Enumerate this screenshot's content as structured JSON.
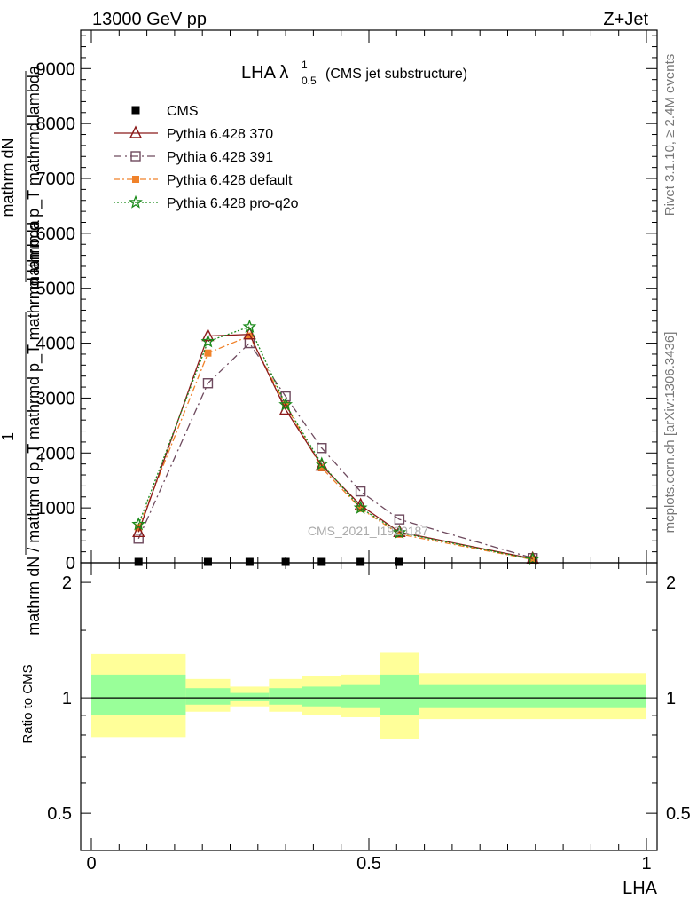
{
  "header": {
    "left": "13000 GeV pp",
    "right": "Z+Jet"
  },
  "side_text": {
    "rivet": "Rivet 3.1.10, ≥ 2.4M events",
    "mcplots": "mcplots.cern.ch [arXiv:1306.3436]"
  },
  "watermark": "CMS_2021_I1920187",
  "colors": {
    "cms": "#000000",
    "p370": "#8b1a1a",
    "p391": "#6e4a5e",
    "pdefault": "#f0822a",
    "pq2o": "#1a8a1a",
    "band_outer": "#ffff99",
    "band_inner": "#99ff99"
  },
  "chart_data": [
    {
      "type": "line",
      "title": "LHA λ",
      "title_sup": "1",
      "title_sub": "0.5",
      "title_suffix": "(CMS jet substructure)",
      "ylabel": "1 / mathrm dN / mathrm d p_T mathrmd p_T mathrmd lambda mathrm dN",
      "ylabel_lines": [
        "mathrm dN",
        "mathrm d p_T mathrmd lambda",
        "1",
        "mathrm dN / mathrm d p_T mathrmd p_T mathrmd lambda"
      ],
      "xlim": [
        0,
        1
      ],
      "ylim": [
        0,
        9700
      ],
      "yticks": [
        0,
        1000,
        2000,
        3000,
        4000,
        5000,
        6000,
        7000,
        8000,
        9000
      ],
      "ytick_labels": [
        "0",
        "1000",
        "2000",
        "3000",
        "4000",
        "5000",
        "6000",
        "7000",
        "8000",
        "9000"
      ],
      "legend_position": "top-left",
      "series": [
        {
          "name": "CMS",
          "key": "cms",
          "style": "data",
          "x": [
            0.085,
            0.21,
            0.285,
            0.35,
            0.415,
            0.485,
            0.555
          ],
          "y": [
            0,
            0,
            0,
            0,
            0,
            0,
            0
          ]
        },
        {
          "name": "Pythia 6.428 370",
          "key": "p370",
          "style": "solid",
          "marker": "triangle",
          "x": [
            0.085,
            0.21,
            0.285,
            0.35,
            0.415,
            0.485,
            0.555,
            0.795
          ],
          "y": [
            560,
            4130,
            4160,
            2790,
            1770,
            1050,
            560,
            75
          ]
        },
        {
          "name": "Pythia 6.428 391",
          "key": "p391",
          "style": "dashdot",
          "marker": "square-open",
          "x": [
            0.085,
            0.21,
            0.285,
            0.35,
            0.415,
            0.485,
            0.555,
            0.795
          ],
          "y": [
            440,
            3270,
            4000,
            3030,
            2090,
            1300,
            790,
            85
          ]
        },
        {
          "name": "Pythia 6.428 default",
          "key": "pdefault",
          "style": "dashdot-light",
          "marker": "square-filled",
          "x": [
            0.085,
            0.21,
            0.285,
            0.35,
            0.415,
            0.485,
            0.555,
            0.795
          ],
          "y": [
            640,
            3820,
            4130,
            2870,
            1730,
            990,
            520,
            60
          ]
        },
        {
          "name": "Pythia 6.428 pro-q2o",
          "key": "pq2o",
          "style": "dotted",
          "marker": "star",
          "x": [
            0.085,
            0.21,
            0.285,
            0.35,
            0.415,
            0.485,
            0.555,
            0.795
          ],
          "y": [
            700,
            4030,
            4300,
            2880,
            1800,
            1000,
            550,
            65
          ]
        }
      ]
    },
    {
      "type": "area",
      "ylabel": "Ratio to CMS",
      "xlabel": "LHA",
      "xlim": [
        0,
        1
      ],
      "ylim": [
        0.4,
        2.25
      ],
      "scale": "log",
      "yticks": [
        0.5,
        1,
        2
      ],
      "ytick_labels": [
        "0.5",
        "1",
        "2"
      ],
      "xticks": [
        0,
        0.5,
        1
      ],
      "xtick_labels": [
        "0",
        "0.5",
        "1"
      ],
      "reference": 1,
      "bins": [
        {
          "x0": 0.0,
          "x1": 0.17,
          "inner": [
            0.9,
            1.15
          ],
          "outer": [
            0.79,
            1.3
          ]
        },
        {
          "x0": 0.17,
          "x1": 0.25,
          "inner": [
            0.96,
            1.06
          ],
          "outer": [
            0.92,
            1.12
          ]
        },
        {
          "x0": 0.25,
          "x1": 0.32,
          "inner": [
            0.98,
            1.03
          ],
          "outer": [
            0.95,
            1.07
          ]
        },
        {
          "x0": 0.32,
          "x1": 0.38,
          "inner": [
            0.96,
            1.06
          ],
          "outer": [
            0.92,
            1.12
          ]
        },
        {
          "x0": 0.38,
          "x1": 0.45,
          "inner": [
            0.95,
            1.07
          ],
          "outer": [
            0.9,
            1.14
          ]
        },
        {
          "x0": 0.45,
          "x1": 0.52,
          "inner": [
            0.94,
            1.08
          ],
          "outer": [
            0.89,
            1.15
          ]
        },
        {
          "x0": 0.52,
          "x1": 0.59,
          "inner": [
            0.9,
            1.15
          ],
          "outer": [
            0.78,
            1.31
          ]
        },
        {
          "x0": 0.59,
          "x1": 1.0,
          "inner": [
            0.94,
            1.08
          ],
          "outer": [
            0.88,
            1.16
          ]
        }
      ]
    }
  ]
}
